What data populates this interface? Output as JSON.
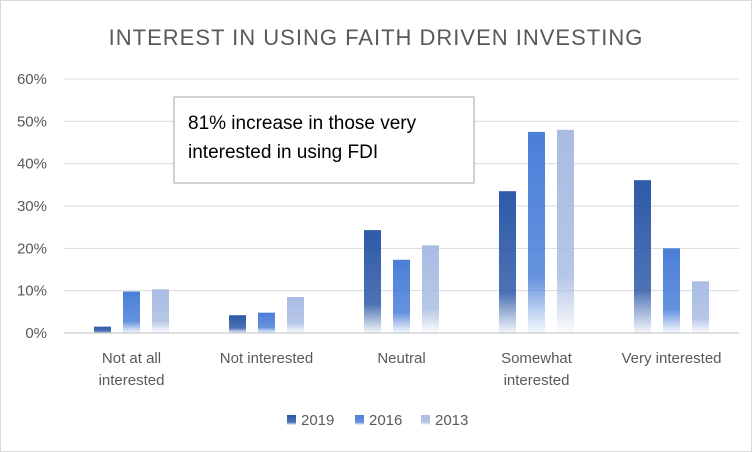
{
  "chart_data": {
    "type": "bar",
    "title": "INTEREST IN USING FAITH DRIVEN INVESTING",
    "categories": [
      [
        "Not at all",
        "interested"
      ],
      [
        "Not interested"
      ],
      [
        "Neutral"
      ],
      [
        "Somewhat",
        "interested"
      ],
      [
        "Very interested"
      ]
    ],
    "series": [
      {
        "name": "2019",
        "color": "#2e5aa8",
        "values": [
          1.5,
          4.2,
          24.3,
          33.5,
          36.1
        ]
      },
      {
        "name": "2016",
        "color": "#4a7fd8",
        "values": [
          9.8,
          4.8,
          17.3,
          47.5,
          20.0
        ]
      },
      {
        "name": "2013",
        "color": "#a9bce3",
        "values": [
          10.3,
          8.5,
          20.7,
          48.0,
          12.2
        ]
      }
    ],
    "yticks": [
      "0%",
      "10%",
      "20%",
      "30%",
      "40%",
      "50%",
      "60%"
    ],
    "ylim": [
      0,
      60
    ],
    "grid": true,
    "legend": "bottom-center",
    "annotation": [
      "81% increase in those very",
      "interested in using FDI"
    ]
  }
}
